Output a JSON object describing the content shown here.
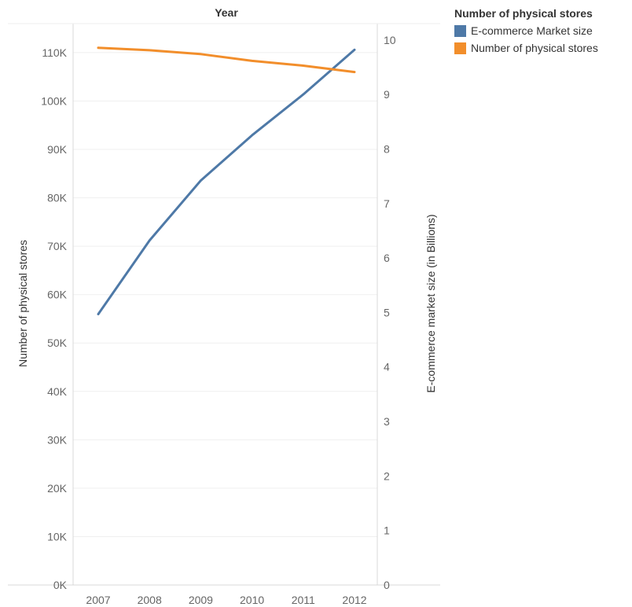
{
  "chart_data": {
    "type": "line",
    "x_title": "Year",
    "categories": [
      "2007",
      "2008",
      "2009",
      "2010",
      "2011",
      "2012"
    ],
    "y_left": {
      "label": "Number of physical stores",
      "ylim": [
        0,
        116000
      ],
      "ticks": [
        0,
        10000,
        20000,
        30000,
        40000,
        50000,
        60000,
        70000,
        80000,
        90000,
        100000,
        110000
      ],
      "tick_labels": [
        "0K",
        "10K",
        "20K",
        "30K",
        "40K",
        "50K",
        "60K",
        "70K",
        "80K",
        "90K",
        "100K",
        "110K"
      ]
    },
    "y_right": {
      "label": "E-commerce market size (in Billions)",
      "ylim": [
        0,
        10.3
      ],
      "ticks": [
        0,
        1,
        2,
        3,
        4,
        5,
        6,
        7,
        8,
        9,
        10
      ],
      "tick_labels": [
        "0",
        "1",
        "2",
        "3",
        "4",
        "5",
        "6",
        "7",
        "8",
        "9",
        "10"
      ]
    },
    "series": [
      {
        "name": "E-commerce Market size",
        "axis": "right",
        "color": "#4e79a7",
        "values": [
          4.97,
          6.32,
          7.42,
          8.25,
          9.0,
          9.82
        ]
      },
      {
        "name": "Number of physical stores",
        "axis": "left",
        "color": "#f28e2b",
        "values": [
          111000,
          110500,
          109700,
          108300,
          107300,
          106000
        ]
      }
    ],
    "legend": {
      "title": "Number of physical stores",
      "position": "top-right"
    },
    "grid": true
  }
}
